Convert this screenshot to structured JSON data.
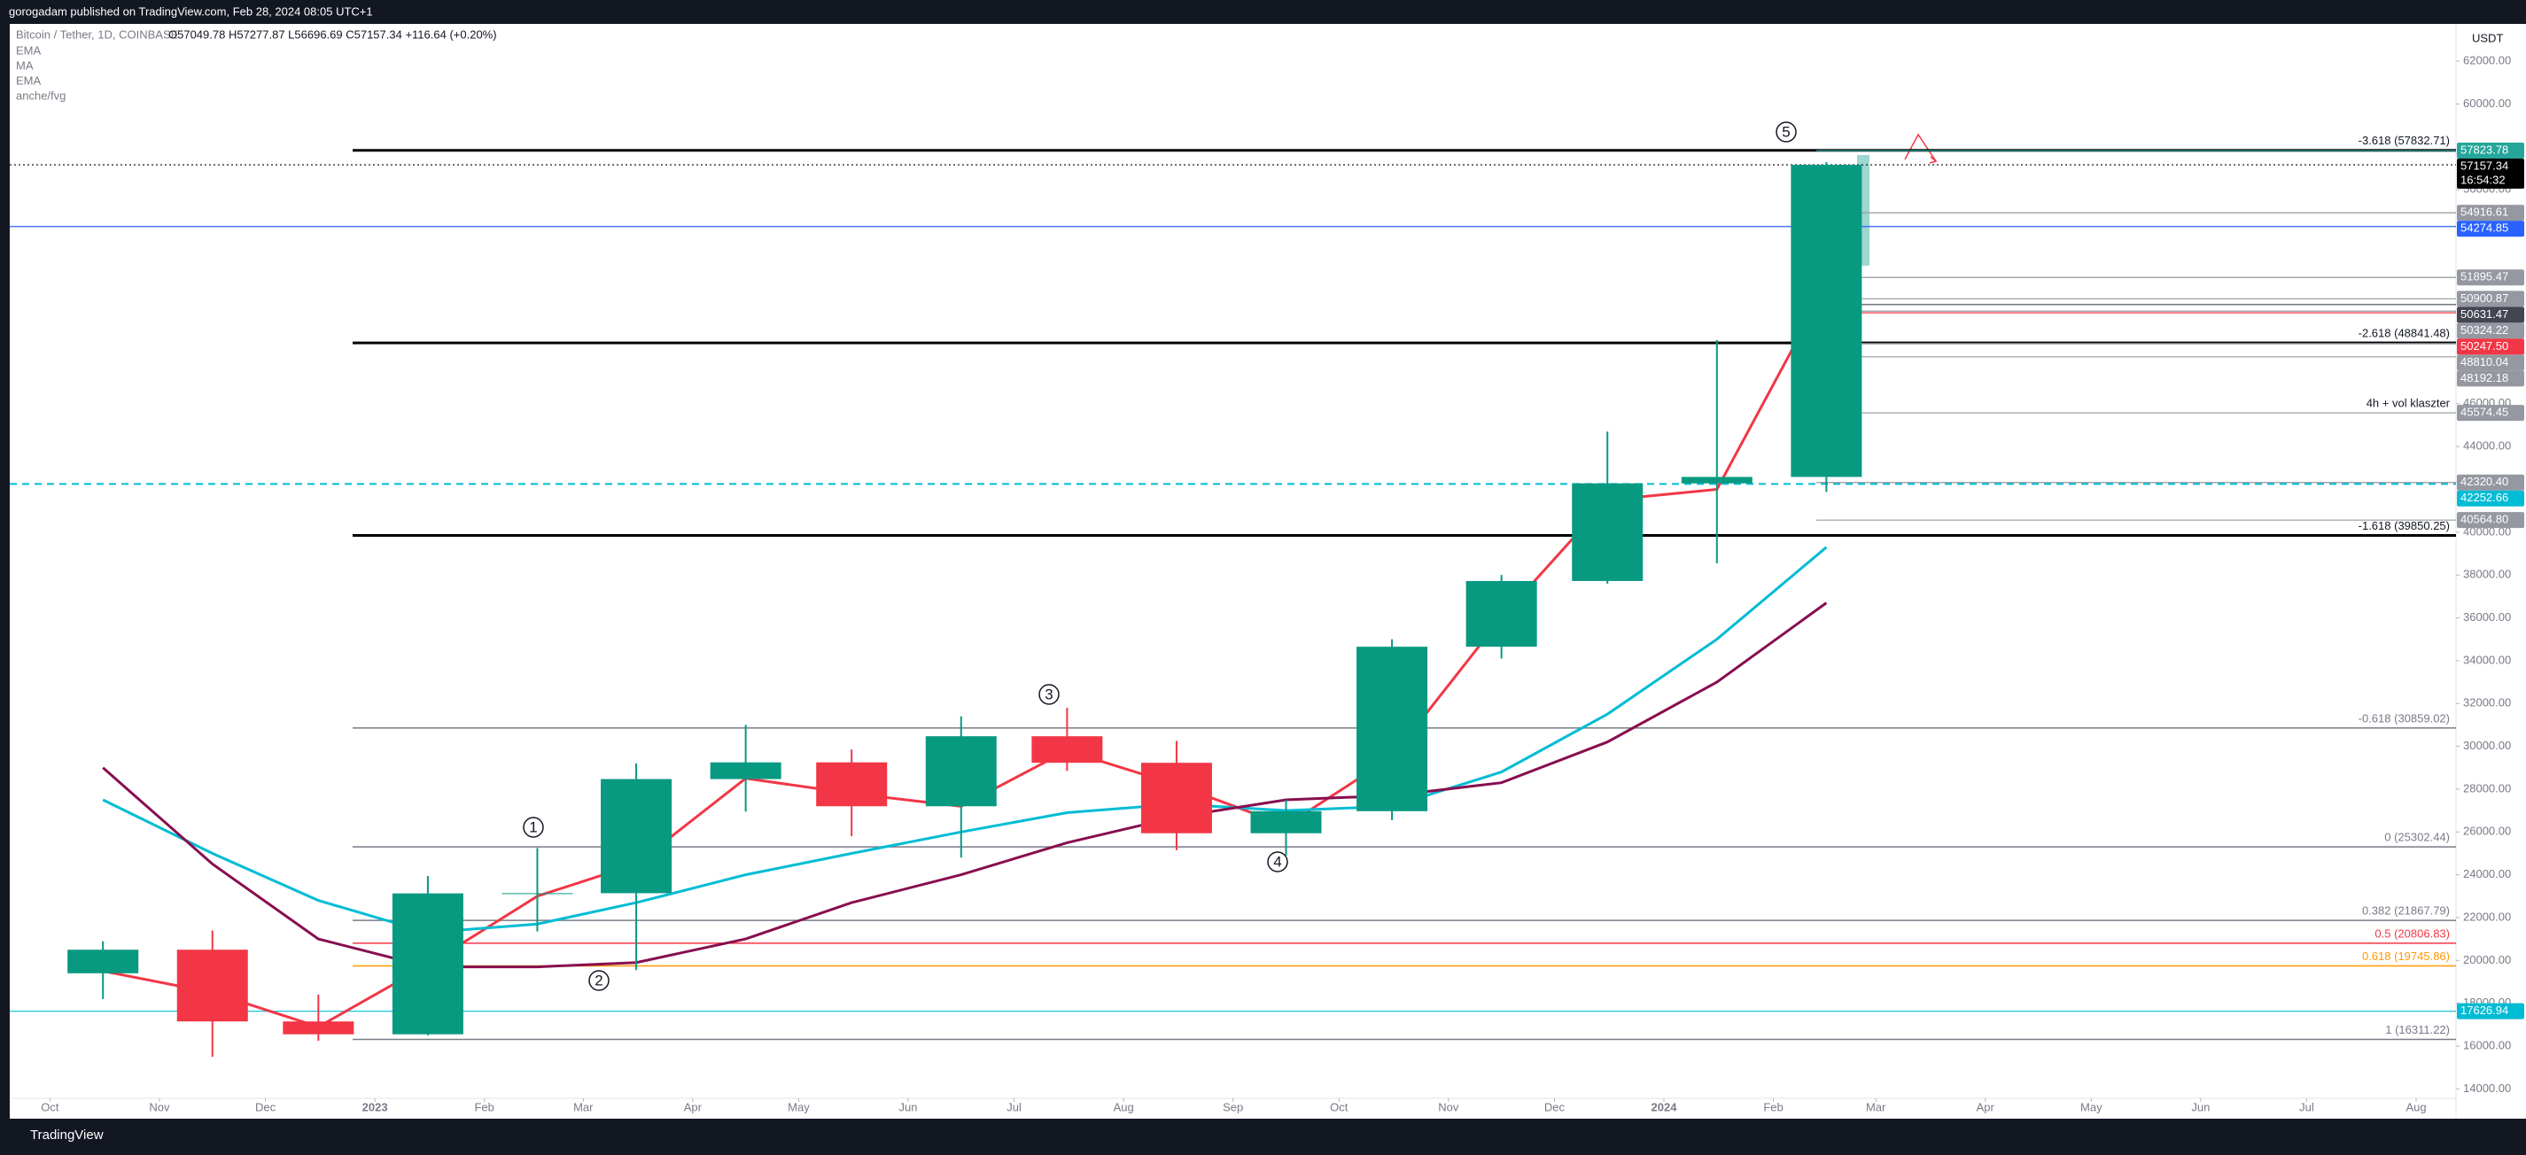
{
  "header": {
    "publisher": "gorogadam published on TradingView.com, Feb 28, 2024 08:05 UTC+1"
  },
  "footer": {
    "brand": "TradingView"
  },
  "chart_data": {
    "type": "candlestick",
    "symbol": "Bitcoin / Tether, 1D, COINBASE",
    "ohlc_text": "O57049.78 H57277.87 L56696.69 C57157.34 +116.64 (+0.20%)",
    "extra_indicator": "anche/fvg",
    "currency": "USDT",
    "countdown": "16:54:32",
    "x": [
      "2022-10",
      "2022-11",
      "2022-12",
      "2023-01",
      "2023-02",
      "2023-03",
      "2023-04",
      "2023-05",
      "2023-06",
      "2023-07",
      "2023-08",
      "2023-09",
      "2023-10",
      "2023-11",
      "2023-12",
      "2024-01",
      "2024-02"
    ],
    "open": [
      19400,
      20500,
      17150,
      16550,
      23130,
      23140,
      28470,
      29250,
      27200,
      30470,
      29230,
      25940,
      26970,
      34650,
      37720,
      42280,
      42580
    ],
    "high": [
      20900,
      21400,
      18400,
      23950,
      25250,
      29200,
      31000,
      29850,
      31400,
      31800,
      30250,
      27500,
      35000,
      38000,
      44700,
      48970,
      57280
    ],
    "low": [
      18200,
      15500,
      16250,
      16500,
      21350,
      19550,
      26950,
      25800,
      24800,
      28850,
      25150,
      24900,
      26550,
      34100,
      37600,
      38550,
      41880
    ],
    "close": [
      20500,
      17150,
      16550,
      23130,
      23140,
      28470,
      29250,
      27200,
      30470,
      29230,
      25940,
      26970,
      34650,
      37720,
      42280,
      42580,
      57157.34
    ],
    "up_color": "#089981",
    "down_color": "#f23645",
    "series": [
      {
        "name": "EMA",
        "color": "#f23645",
        "values": [
          19500,
          18500,
          16900,
          19800,
          23000,
          24500,
          28500,
          27800,
          27200,
          29800,
          28200,
          26300,
          29500,
          36000,
          41500,
          42000,
          51500
        ]
      },
      {
        "name": "MA",
        "color": "#00bcd4",
        "values": [
          27500,
          25000,
          22800,
          21300,
          21700,
          22700,
          24000,
          25000,
          26000,
          26900,
          27300,
          27000,
          27200,
          28800,
          31500,
          35000,
          39300
        ]
      },
      {
        "name": "EMA",
        "color": "#880e4f",
        "values": [
          29000,
          24500,
          21000,
          19700,
          19700,
          19900,
          21000,
          22700,
          24000,
          25500,
          26700,
          27500,
          27700,
          28300,
          30200,
          33000,
          36700
        ]
      }
    ],
    "ylim": [
      12650,
      63200
    ],
    "yticks": [
      {
        "value": 62000,
        "label": "62000.00"
      },
      {
        "value": 60000,
        "label": "60000.00"
      },
      {
        "value": 56000,
        "label": "56000.00"
      },
      {
        "value": 46000,
        "label": "46000.00"
      },
      {
        "value": 44000,
        "label": "44000.00"
      },
      {
        "value": 40000,
        "label": "40000.00"
      },
      {
        "value": 38000,
        "label": "38000.00"
      },
      {
        "value": 36000,
        "label": "36000.00"
      },
      {
        "value": 34000,
        "label": "34000.00"
      },
      {
        "value": 32000,
        "label": "32000.00"
      },
      {
        "value": 30000,
        "label": "30000.00"
      },
      {
        "value": 28000,
        "label": "28000.00"
      },
      {
        "value": 26000,
        "label": "26000.00"
      },
      {
        "value": 24000,
        "label": "24000.00"
      },
      {
        "value": 22000,
        "label": "22000.00"
      },
      {
        "value": 20000,
        "label": "20000.00"
      },
      {
        "value": 18000,
        "label": "18000.00"
      },
      {
        "value": 16000,
        "label": "16000.00"
      },
      {
        "value": 14000,
        "label": "14000.00"
      }
    ],
    "xticks": [
      {
        "value": "2022-10",
        "label": "Oct"
      },
      {
        "value": "2022-11",
        "label": "Nov"
      },
      {
        "value": "2022-12",
        "label": "Dec"
      },
      {
        "value": "2023-01",
        "label": "2023"
      },
      {
        "value": "2023-02",
        "label": "Feb"
      },
      {
        "value": "2023-03",
        "label": "Mar"
      },
      {
        "value": "2023-04",
        "label": "Apr"
      },
      {
        "value": "2023-05",
        "label": "May"
      },
      {
        "value": "2023-06",
        "label": "Jun"
      },
      {
        "value": "2023-07",
        "label": "Jul"
      },
      {
        "value": "2023-08",
        "label": "Aug"
      },
      {
        "value": "2023-09",
        "label": "Sep"
      },
      {
        "value": "2023-10",
        "label": "Oct"
      },
      {
        "value": "2023-11",
        "label": "Nov"
      },
      {
        "value": "2023-12",
        "label": "Dec"
      },
      {
        "value": "2024-01",
        "label": "2024"
      },
      {
        "value": "2024-02",
        "label": "Feb"
      },
      {
        "value": "2024-03",
        "label": "Mar"
      },
      {
        "value": "2024-04",
        "label": "Apr"
      },
      {
        "value": "2024-05",
        "label": "May"
      },
      {
        "value": "2024-06",
        "label": "Jun"
      },
      {
        "value": "2024-07",
        "label": "Jul"
      },
      {
        "value": "2024-08",
        "label": "Aug"
      }
    ],
    "levels": [
      {
        "label": "-3.618 (57832.71)",
        "value": 57832.71,
        "color": "#000000",
        "text_color": "#131722",
        "weight": 2
      },
      {
        "label": "-2.618 (48841.48)",
        "value": 48841.48,
        "color": "#000000",
        "text_color": "#131722",
        "weight": 2
      },
      {
        "label": "-1.618 (39850.25)",
        "value": 39850.25,
        "color": "#000000",
        "text_color": "#131722",
        "weight": 2
      },
      {
        "label": "-0.618 (30859.02)",
        "value": 30859.02,
        "color": "#787b86",
        "text_color": "#787b86",
        "weight": 1
      },
      {
        "label": "0 (25302.44)",
        "value": 25302.44,
        "color": "#787b86",
        "text_color": "#787b86",
        "weight": 1
      },
      {
        "label": "0.382 (21867.79)",
        "value": 21867.79,
        "color": "#787b86",
        "text_color": "#787b86",
        "weight": 1
      },
      {
        "label": "0.5 (20806.83)",
        "value": 20806.83,
        "color": "#f23645",
        "text_color": "#f23645",
        "weight": 1
      },
      {
        "label": "0.618 (19745.86)",
        "value": 19745.86,
        "color": "#ff9800",
        "text_color": "#ff9800",
        "weight": 1
      },
      {
        "label": "1 (16311.22)",
        "value": 16311.22,
        "color": "#787b86",
        "text_color": "#787b86",
        "weight": 1
      }
    ],
    "price_labels": [
      {
        "value": 57823.78,
        "label": "57823.78",
        "color": "#26a69a",
        "line": "short"
      },
      {
        "value": 57157.34,
        "label": "57157.34",
        "color": "#000000",
        "line": "dotted"
      },
      {
        "value": 54916.61,
        "label": "54916.61",
        "color": "#9598a1",
        "line": "short"
      },
      {
        "value": 54274.85,
        "label": "54274.85",
        "color": "#2962ff",
        "line": "full"
      },
      {
        "value": 51895.47,
        "label": "51895.47",
        "color": "#9598a1",
        "line": "short"
      },
      {
        "value": 50900.87,
        "label": "50900.87",
        "color": "#9598a1",
        "line": "short"
      },
      {
        "value": 50631.47,
        "label": "50631.47",
        "color": "#434651",
        "line": "short"
      },
      {
        "value": 50324.22,
        "label": "50324.22",
        "color": "#9598a1",
        "line": "short"
      },
      {
        "value": 50247.5,
        "label": "50247.50",
        "color": "#f23645",
        "line": "short"
      },
      {
        "value": 48810.04,
        "label": "48810.04",
        "color": "#9598a1",
        "line": "short"
      },
      {
        "value": 48192.18,
        "label": "48192.18",
        "color": "#9598a1",
        "line": "short"
      },
      {
        "value": 45574.45,
        "label": "45574.45",
        "color": "#9598a1",
        "line": "short"
      },
      {
        "value": 42320.4,
        "label": "42320.40",
        "color": "#9598a1",
        "line": "short"
      },
      {
        "value": 42252.66,
        "label": "42252.66",
        "color": "#00bcd4",
        "line": "dashed"
      },
      {
        "value": 40564.8,
        "label": "40564.80",
        "color": "#9598a1",
        "line": "short"
      },
      {
        "value": 17626.94,
        "label": "17626.94",
        "color": "#00bcd4",
        "line": "full"
      }
    ],
    "annotations": {
      "waves": [
        "5",
        "3",
        "1",
        "4",
        "2"
      ],
      "note": "4h + vol klaszter"
    }
  }
}
